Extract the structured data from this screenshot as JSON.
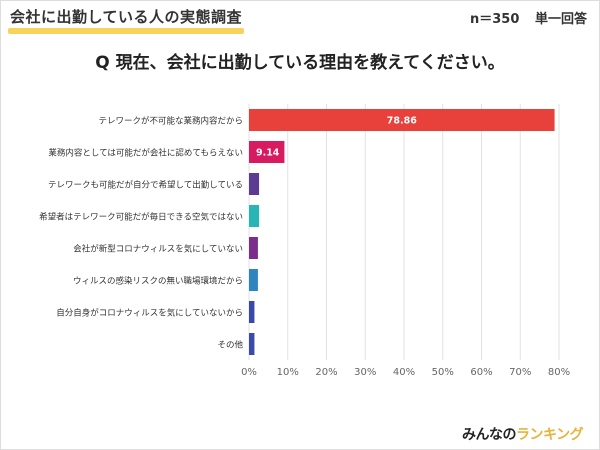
{
  "header": {
    "title": "会社に出勤している人の実態調査",
    "sample_size": "n＝350",
    "answer_type": "単一回答"
  },
  "question": "Q 現在、会社に出勤している理由を教えてください。",
  "logo": {
    "text_a": "みんなの",
    "text_b": "ランキング"
  },
  "chart_data": {
    "type": "bar",
    "orientation": "horizontal",
    "title": "",
    "xlabel": "",
    "ylabel": "",
    "xlim": [
      0,
      80
    ],
    "grid": true,
    "x_tick_labels": [
      "0%",
      "10%",
      "20%",
      "30%",
      "40%",
      "50%",
      "60%",
      "70%",
      "80%"
    ],
    "categories": [
      "テレワークが不可能な業務内容だから",
      "業務内容としては可能だが会社に認めてもらえない",
      "テレワークも可能だが自分で希望して出勤している",
      "希望者はテレワーク可能だが毎日できる空気ではない",
      "会社が新型コロナウィルスを気にしていない",
      "ウィルスの感染リスクの無い職場環境だから",
      "自分自身がコロナウィルスを気にしていないから",
      "その他"
    ],
    "values": [
      78.86,
      9.14,
      2.6,
      2.6,
      2.3,
      2.3,
      1.4,
      1.4
    ],
    "data_labels": [
      "78.86",
      "9.14",
      "",
      "",
      "",
      "",
      "",
      ""
    ],
    "colors": [
      "#e8403a",
      "#d81b60",
      "#5c3c92",
      "#29b5b5",
      "#7b2d8e",
      "#2e86c1",
      "#3949ab",
      "#3a4ca8"
    ]
  }
}
